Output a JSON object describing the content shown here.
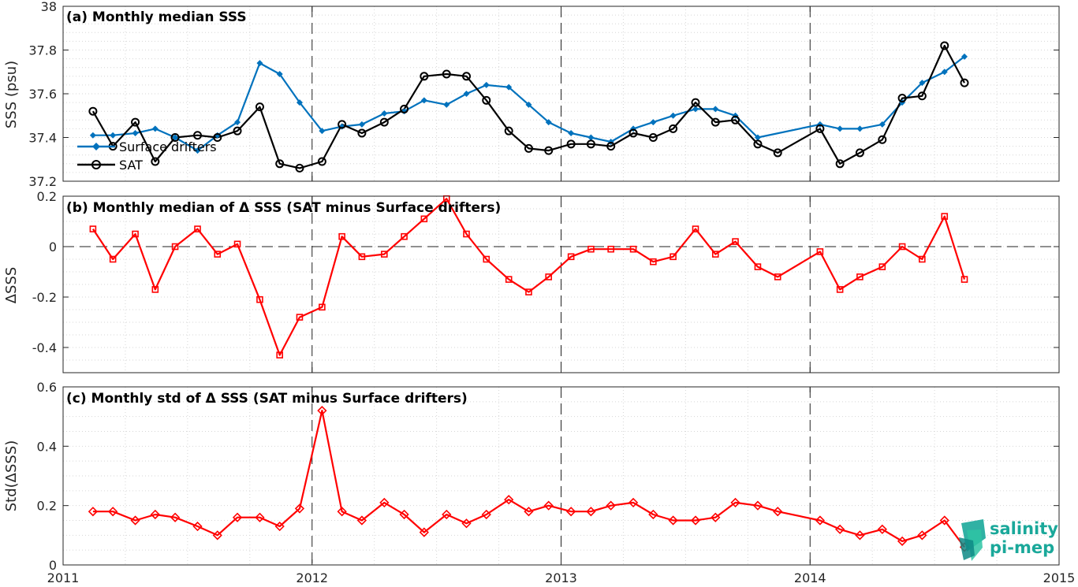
{
  "colors": {
    "surface_drifters": "#0072bd",
    "sat": "#000000",
    "delta": "#ff0000",
    "logo": "#1aa89a"
  },
  "logo": {
    "line1": "salinity",
    "line2": "pi-mep"
  },
  "chart_data": [
    {
      "type": "line",
      "title": "(a) Monthly median SSS",
      "ylabel": "SSS (psu)",
      "xlim": [
        2011,
        2015
      ],
      "ylim": [
        37.2,
        38
      ],
      "yticks": [
        "37.2",
        "37.4",
        "37.6",
        "37.8",
        "38"
      ],
      "xticks": [
        "2011",
        "2012",
        "2013",
        "2014",
        "2015"
      ],
      "grid": true,
      "legend_position": "left",
      "series": [
        {
          "name": "Surface drifters",
          "marker": "diamond-filled",
          "x": [
            2011.12,
            2011.2,
            2011.29,
            2011.37,
            2011.45,
            2011.54,
            2011.62,
            2011.7,
            2011.79,
            2011.87,
            2011.95,
            2012.04,
            2012.12,
            2012.2,
            2012.29,
            2012.37,
            2012.45,
            2012.54,
            2012.62,
            2012.7,
            2012.79,
            2012.87,
            2012.95,
            2013.04,
            2013.12,
            2013.2,
            2013.29,
            2013.37,
            2013.45,
            2013.54,
            2013.62,
            2013.7,
            2013.79,
            2014.04,
            2014.12,
            2014.2,
            2014.29,
            2014.37,
            2014.45,
            2014.54,
            2014.62
          ],
          "values": [
            37.41,
            37.41,
            37.42,
            37.44,
            37.4,
            37.34,
            37.41,
            37.47,
            37.74,
            37.69,
            37.56,
            37.43,
            37.45,
            37.46,
            37.51,
            37.52,
            37.57,
            37.55,
            37.6,
            37.64,
            37.63,
            37.55,
            37.47,
            37.42,
            37.4,
            37.38,
            37.44,
            37.47,
            37.5,
            37.53,
            37.53,
            37.5,
            37.4,
            37.46,
            37.44,
            37.44,
            37.46,
            37.56,
            37.65,
            37.7,
            37.77
          ]
        },
        {
          "name": "SAT",
          "marker": "circle-open",
          "x": [
            2011.12,
            2011.2,
            2011.29,
            2011.37,
            2011.45,
            2011.54,
            2011.62,
            2011.7,
            2011.79,
            2011.87,
            2011.95,
            2012.04,
            2012.12,
            2012.2,
            2012.29,
            2012.37,
            2012.45,
            2012.54,
            2012.62,
            2012.7,
            2012.79,
            2012.87,
            2012.95,
            2013.04,
            2013.12,
            2013.2,
            2013.29,
            2013.37,
            2013.45,
            2013.54,
            2013.62,
            2013.7,
            2013.79,
            2013.87,
            2014.04,
            2014.12,
            2014.2,
            2014.29,
            2014.37,
            2014.45,
            2014.54,
            2014.62
          ],
          "values": [
            37.52,
            37.36,
            37.47,
            37.29,
            37.4,
            37.41,
            37.4,
            37.43,
            37.54,
            37.28,
            37.26,
            37.29,
            37.46,
            37.42,
            37.47,
            37.53,
            37.68,
            37.69,
            37.68,
            37.57,
            37.43,
            37.35,
            37.34,
            37.37,
            37.37,
            37.36,
            37.42,
            37.4,
            37.44,
            37.56,
            37.47,
            37.48,
            37.37,
            37.33,
            37.44,
            37.28,
            37.33,
            37.39,
            37.58,
            37.59,
            37.82,
            37.65
          ]
        }
      ]
    },
    {
      "type": "line",
      "title": "(b) Monthly median of Δ SSS (SAT minus Surface drifters)",
      "ylabel": "ΔSSS",
      "xlim": [
        2011,
        2015
      ],
      "ylim": [
        -0.5,
        0.2
      ],
      "yticks": [
        "-0.4",
        "-0.2",
        "0",
        "0.2"
      ],
      "grid": true,
      "series": [
        {
          "marker": "square-open",
          "x": [
            2011.12,
            2011.2,
            2011.29,
            2011.37,
            2011.45,
            2011.54,
            2011.62,
            2011.7,
            2011.79,
            2011.87,
            2011.95,
            2012.04,
            2012.12,
            2012.2,
            2012.29,
            2012.37,
            2012.45,
            2012.54,
            2012.62,
            2012.7,
            2012.79,
            2012.87,
            2012.95,
            2013.04,
            2013.12,
            2013.2,
            2013.29,
            2013.37,
            2013.45,
            2013.54,
            2013.62,
            2013.7,
            2013.79,
            2013.87,
            2014.04,
            2014.12,
            2014.2,
            2014.29,
            2014.37,
            2014.45,
            2014.54,
            2014.62
          ],
          "values": [
            0.07,
            -0.05,
            0.05,
            -0.17,
            0.0,
            0.07,
            -0.03,
            0.01,
            -0.21,
            -0.43,
            -0.28,
            -0.24,
            0.04,
            -0.04,
            -0.03,
            0.04,
            0.11,
            0.19,
            0.05,
            -0.05,
            -0.13,
            -0.18,
            -0.12,
            -0.04,
            -0.01,
            -0.01,
            -0.01,
            -0.06,
            -0.04,
            0.07,
            -0.03,
            0.02,
            -0.08,
            -0.12,
            -0.02,
            -0.17,
            -0.12,
            -0.08,
            0.0,
            -0.05,
            0.12,
            -0.13
          ]
        }
      ]
    },
    {
      "type": "line",
      "title": "(c) Monthly std of Δ SSS (SAT minus Surface drifters)",
      "ylabel": "Std(ΔSSS)",
      "xlim": [
        2011,
        2015
      ],
      "ylim": [
        0,
        0.6
      ],
      "yticks": [
        "0",
        "0.2",
        "0.4",
        "0.6"
      ],
      "grid": true,
      "series": [
        {
          "marker": "diamond-open",
          "x": [
            2011.12,
            2011.2,
            2011.29,
            2011.37,
            2011.45,
            2011.54,
            2011.62,
            2011.7,
            2011.79,
            2011.87,
            2011.95,
            2012.04,
            2012.12,
            2012.2,
            2012.29,
            2012.37,
            2012.45,
            2012.54,
            2012.62,
            2012.7,
            2012.79,
            2012.87,
            2012.95,
            2013.04,
            2013.12,
            2013.2,
            2013.29,
            2013.37,
            2013.45,
            2013.54,
            2013.62,
            2013.7,
            2013.79,
            2013.87,
            2014.04,
            2014.12,
            2014.2,
            2014.29,
            2014.37,
            2014.45,
            2014.54,
            2014.62
          ],
          "values": [
            0.18,
            0.18,
            0.15,
            0.17,
            0.16,
            0.13,
            0.1,
            0.16,
            0.16,
            0.13,
            0.19,
            0.52,
            0.18,
            0.15,
            0.21,
            0.17,
            0.11,
            0.17,
            0.14,
            0.17,
            0.22,
            0.18,
            0.2,
            0.18,
            0.18,
            0.2,
            0.21,
            0.17,
            0.15,
            0.15,
            0.16,
            0.21,
            0.2,
            0.18,
            0.15,
            0.12,
            0.1,
            0.12,
            0.08,
            0.1,
            0.15,
            0.06
          ]
        }
      ]
    }
  ]
}
